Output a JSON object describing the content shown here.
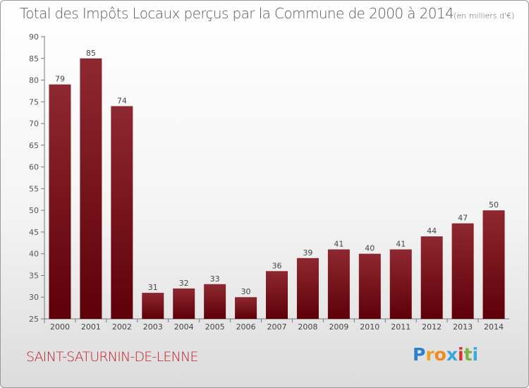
{
  "title": "Total des Impôts Locaux perçus par la Commune de 2000 à 2014",
  "title_unit": "(en milliers d'€)",
  "commune": "SAINT-SATURNIN-DE-LENNE",
  "logo_text": "Proxiti",
  "colors": {
    "bar_dark": "#5e0008",
    "bar_light": "#8e2830",
    "commune_text": "#c0202a",
    "title_text": "#5a5a5a"
  },
  "chart_data": {
    "type": "bar",
    "title": "Total des Impôts Locaux perçus par la Commune de 2000 à 2014",
    "unit": "(en milliers d'€)",
    "categories": [
      "2000",
      "2001",
      "2002",
      "2003",
      "2004",
      "2005",
      "2006",
      "2007",
      "2008",
      "2009",
      "2010",
      "2011",
      "2012",
      "2013",
      "2014"
    ],
    "values": [
      79,
      85,
      74,
      31,
      32,
      33,
      30,
      36,
      39,
      41,
      40,
      41,
      44,
      47,
      50
    ],
    "ylim": [
      25,
      90
    ],
    "yticks": [
      25,
      30,
      35,
      40,
      45,
      50,
      55,
      60,
      65,
      70,
      75,
      80,
      85,
      90
    ],
    "grid": false,
    "xlabel": "",
    "ylabel": ""
  }
}
